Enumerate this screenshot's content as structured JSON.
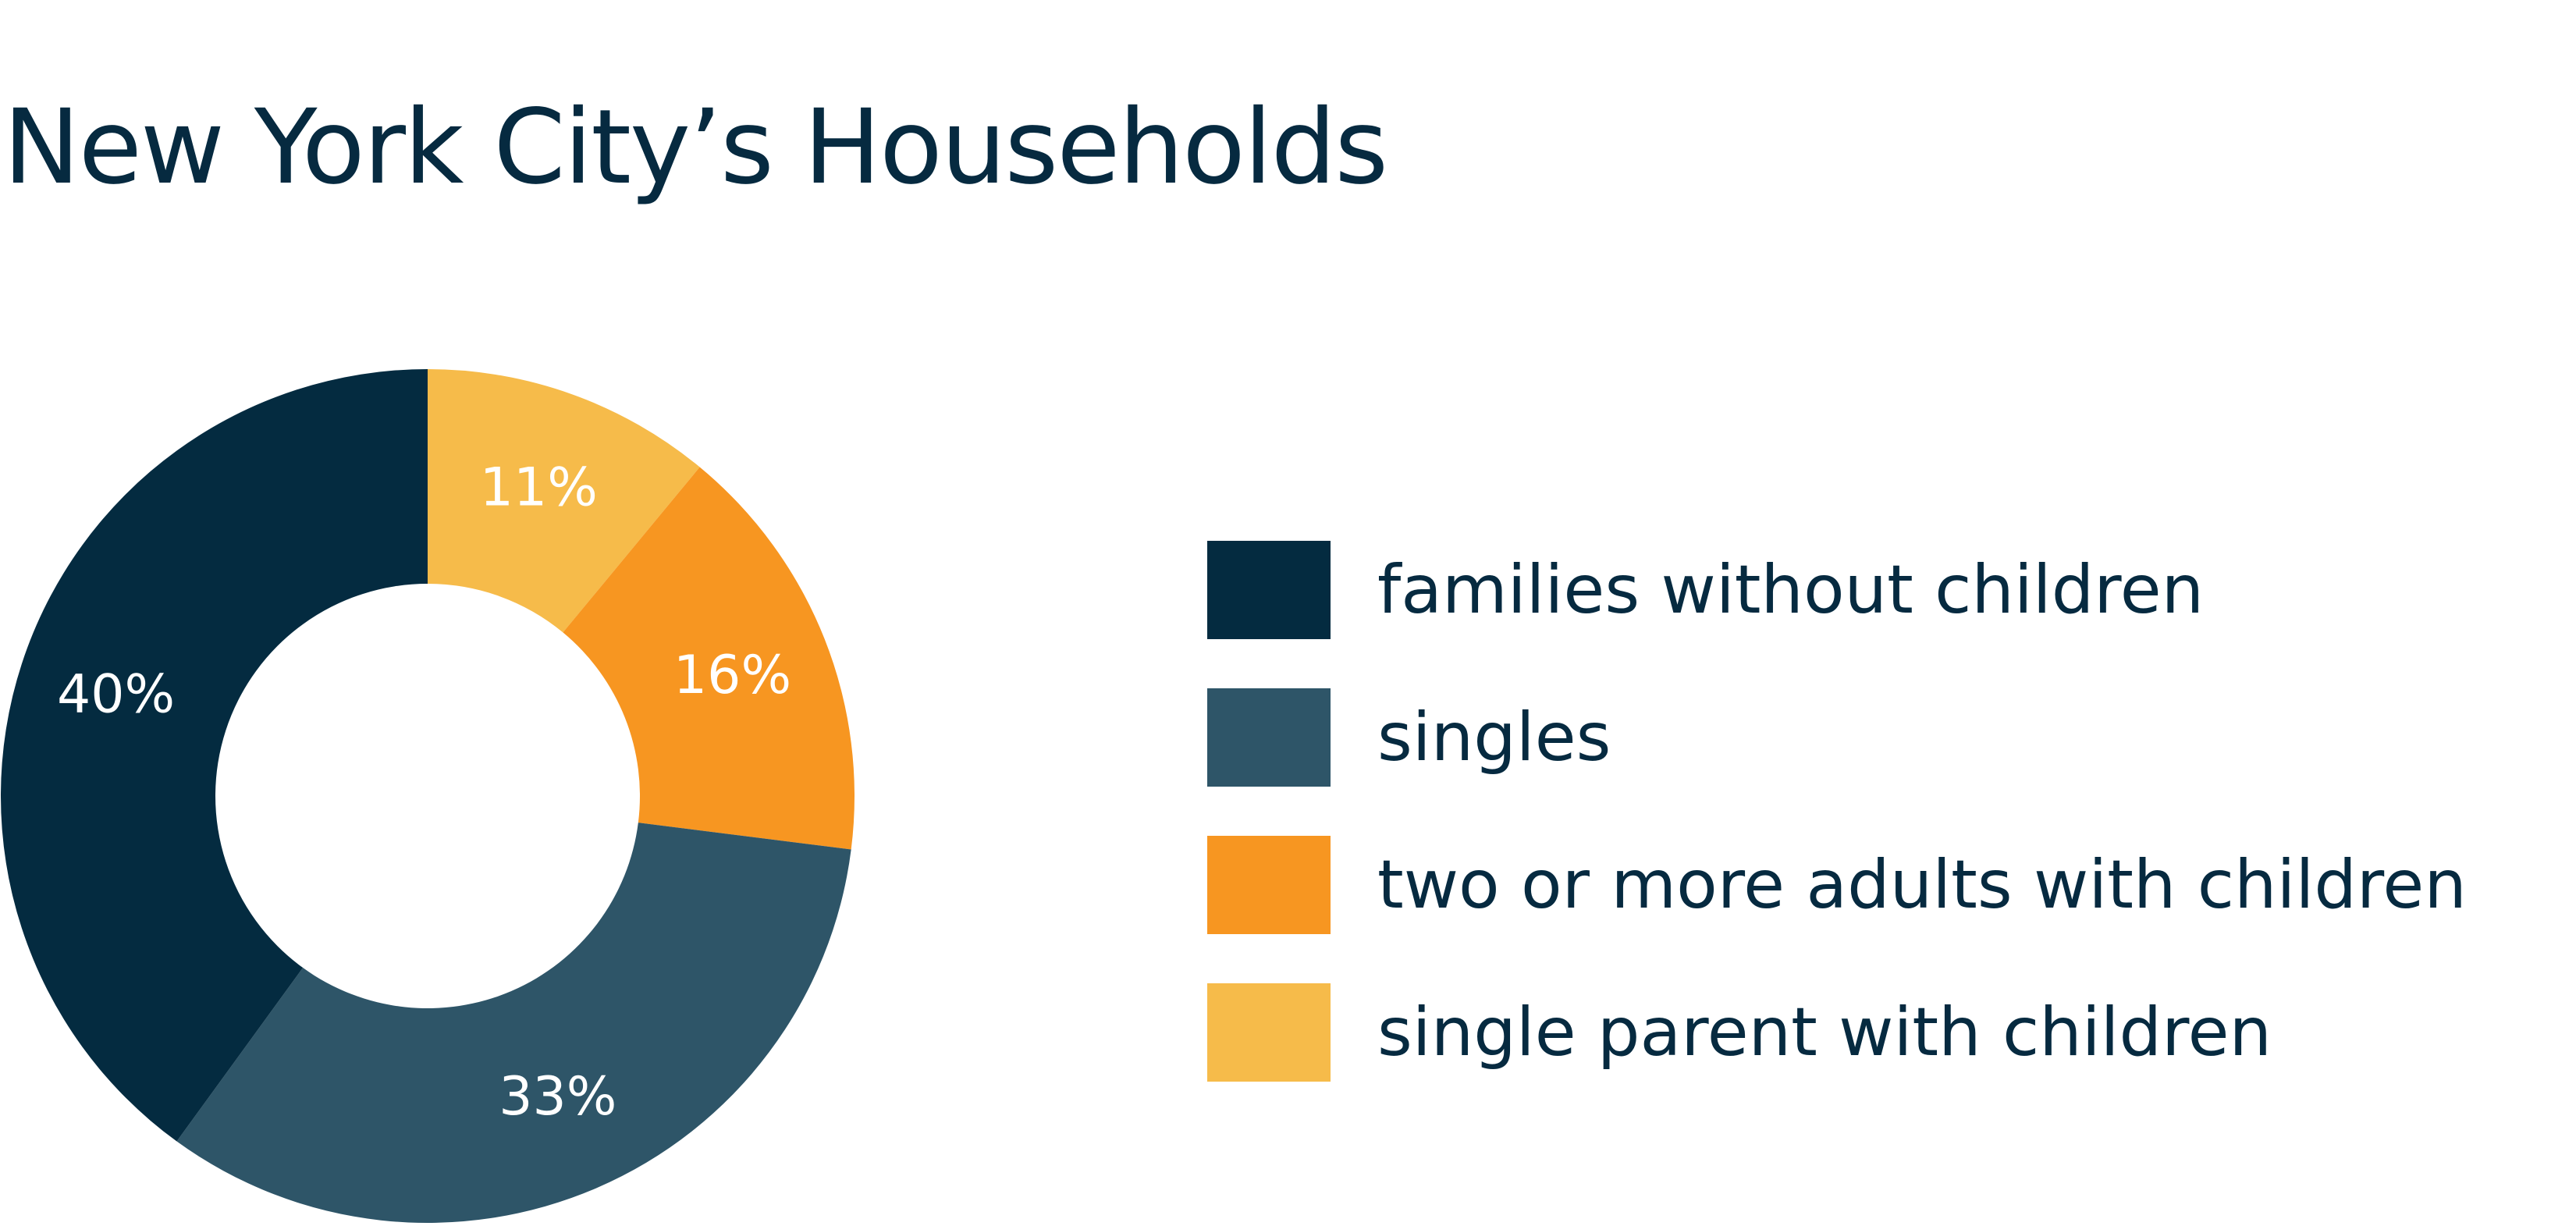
{
  "title": "New York City’s Households",
  "chart_data": {
    "type": "pie",
    "variant": "donut",
    "title": "New York City’s Households",
    "slices": [
      {
        "label": "single parent with children",
        "value": 11,
        "value_label": "11%",
        "color": "#f6bb4a"
      },
      {
        "label": "two or more adults with children",
        "value": 16,
        "value_label": "16%",
        "color": "#f79621"
      },
      {
        "label": "singles",
        "value": 33,
        "value_label": "33%",
        "color": "#2e5568"
      },
      {
        "label": "families without children",
        "value": 40,
        "value_label": "40%",
        "color": "#042b40"
      }
    ],
    "legend": {
      "placement": "right",
      "entries": [
        {
          "label": "families without children",
          "color": "#042b40"
        },
        {
          "label": "singles",
          "color": "#2e5568"
        },
        {
          "label": "two or more adults with children",
          "color": "#f79621"
        },
        {
          "label": "single parent with children",
          "color": "#f6bb4a"
        }
      ]
    }
  }
}
